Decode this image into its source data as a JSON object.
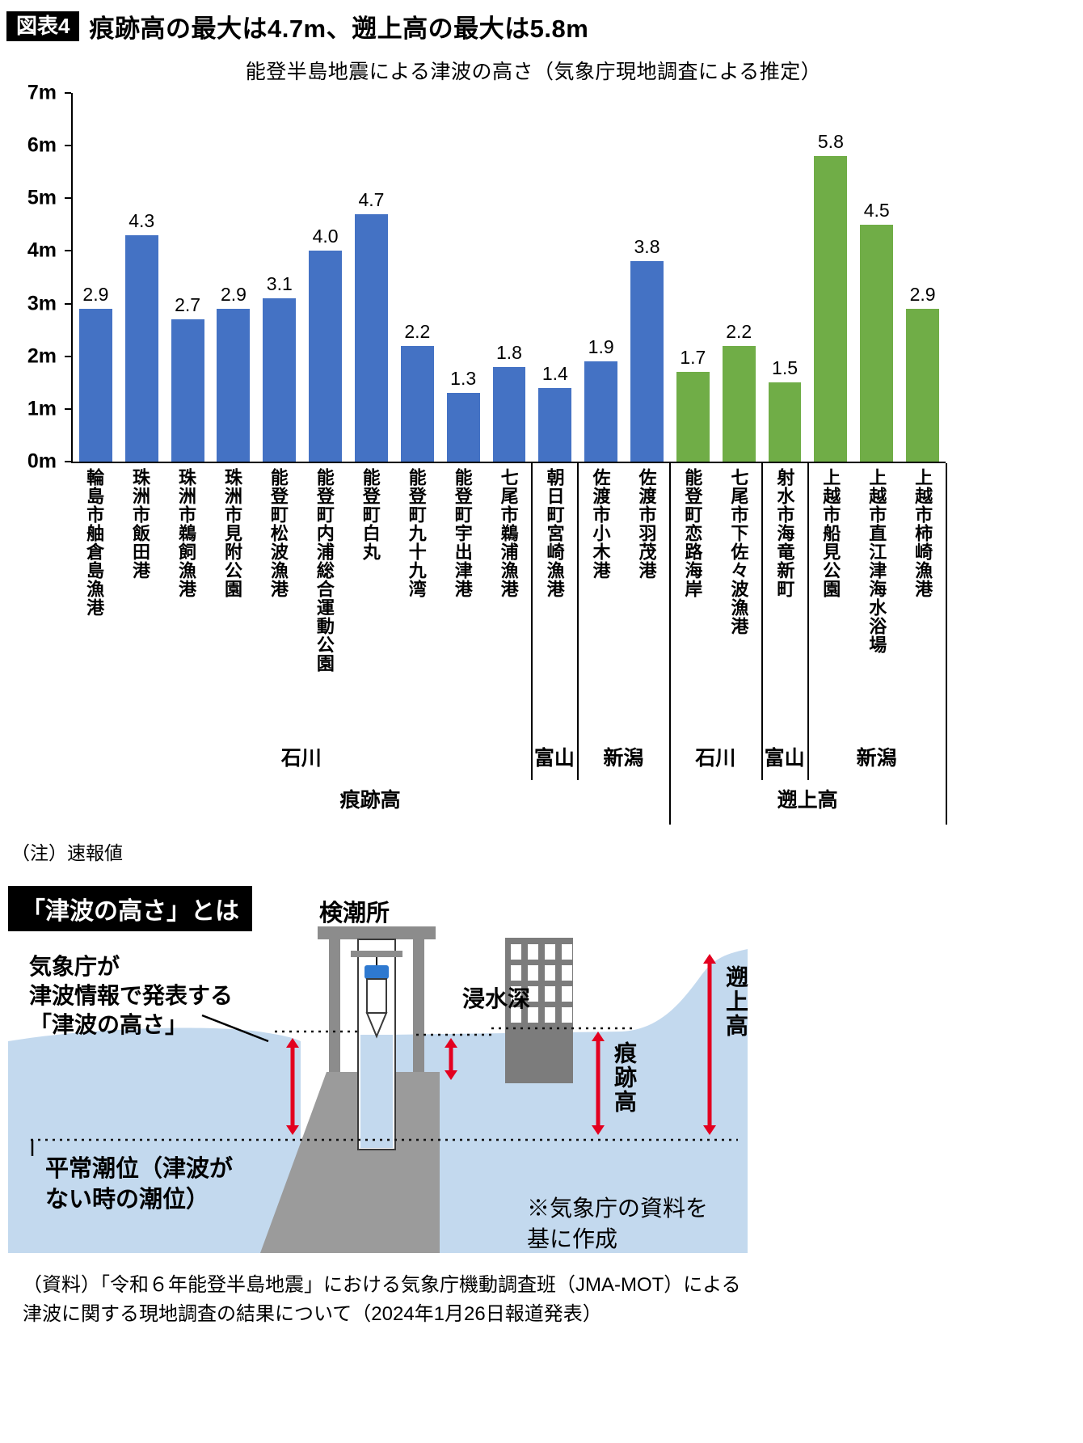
{
  "header": {
    "badge": "図表4",
    "title": "痕跡高の最大は4.7m、遡上高の最大は5.8m"
  },
  "chart_data": {
    "type": "bar",
    "title": "能登半島地震による津波の高さ（気象庁現地調査による推定）",
    "xlabel": "",
    "ylabel": "",
    "ylim": [
      0,
      7
    ],
    "y_ticks": [
      0,
      1,
      2,
      3,
      4,
      5,
      6,
      7
    ],
    "y_tick_suffix": "m",
    "grid": false,
    "groups": [
      {
        "name": "痕跡高",
        "color": "#4472c4"
      },
      {
        "name": "遡上高",
        "color": "#70ad47"
      }
    ],
    "bars": [
      {
        "label": "輪島市舳倉島漁港",
        "value": 2.9,
        "display": "2.9",
        "group": "痕跡高",
        "region": "石川"
      },
      {
        "label": "珠洲市飯田港",
        "value": 4.3,
        "display": "4.3",
        "group": "痕跡高",
        "region": "石川"
      },
      {
        "label": "珠洲市鵜飼漁港",
        "value": 2.7,
        "display": "2.7",
        "group": "痕跡高",
        "region": "石川"
      },
      {
        "label": "珠洲市見附公園",
        "value": 2.9,
        "display": "2.9",
        "group": "痕跡高",
        "region": "石川"
      },
      {
        "label": "能登町松波漁港",
        "value": 3.1,
        "display": "3.1",
        "group": "痕跡高",
        "region": "石川"
      },
      {
        "label": "能登町内浦総合運動公園",
        "value": 4.0,
        "display": "4.0",
        "group": "痕跡高",
        "region": "石川"
      },
      {
        "label": "能登町白丸",
        "value": 4.7,
        "display": "4.7",
        "group": "痕跡高",
        "region": "石川"
      },
      {
        "label": "能登町九十九湾",
        "value": 2.2,
        "display": "2.2",
        "group": "痕跡高",
        "region": "石川"
      },
      {
        "label": "能登町宇出津港",
        "value": 1.3,
        "display": "1.3",
        "group": "痕跡高",
        "region": "石川"
      },
      {
        "label": "七尾市鵜浦漁港",
        "value": 1.8,
        "display": "1.8",
        "group": "痕跡高",
        "region": "石川"
      },
      {
        "label": "朝日町宮崎漁港",
        "value": 1.4,
        "display": "1.4",
        "group": "痕跡高",
        "region": "富山"
      },
      {
        "label": "佐渡市小木港",
        "value": 1.9,
        "display": "1.9",
        "group": "痕跡高",
        "region": "新潟"
      },
      {
        "label": "佐渡市羽茂港",
        "value": 3.8,
        "display": "3.8",
        "group": "痕跡高",
        "region": "新潟"
      },
      {
        "label": "能登町恋路海岸",
        "value": 1.7,
        "display": "1.7",
        "group": "遡上高",
        "region": "石川"
      },
      {
        "label": "七尾市下佐々波漁港",
        "value": 2.2,
        "display": "2.2",
        "group": "遡上高",
        "region": "石川"
      },
      {
        "label": "射水市海竜新町",
        "value": 1.5,
        "display": "1.5",
        "group": "遡上高",
        "region": "富山"
      },
      {
        "label": "上越市船見公園",
        "value": 5.8,
        "display": "5.8",
        "group": "遡上高",
        "region": "新潟"
      },
      {
        "label": "上越市直江津海水浴場",
        "value": 4.5,
        "display": "4.5",
        "group": "遡上高",
        "region": "新潟"
      },
      {
        "label": "上越市柿崎漁港",
        "value": 2.9,
        "display": "2.9",
        "group": "遡上高",
        "region": "新潟"
      }
    ],
    "region_spans": [
      {
        "label": "石川",
        "start": 0,
        "end": 10
      },
      {
        "label": "富山",
        "start": 10,
        "end": 11
      },
      {
        "label": "新潟",
        "start": 11,
        "end": 13
      },
      {
        "label": "石川",
        "start": 13,
        "end": 15
      },
      {
        "label": "富山",
        "start": 15,
        "end": 16
      },
      {
        "label": "新潟",
        "start": 16,
        "end": 19
      }
    ],
    "group_spans": [
      {
        "label": "痕跡高",
        "start": 0,
        "end": 13
      },
      {
        "label": "遡上高",
        "start": 13,
        "end": 19
      }
    ],
    "dividers": [
      {
        "index": 10,
        "extent": "region"
      },
      {
        "index": 11,
        "extent": "region"
      },
      {
        "index": 13,
        "extent": "group"
      },
      {
        "index": 15,
        "extent": "region"
      },
      {
        "index": 16,
        "extent": "region"
      },
      {
        "index": 19,
        "extent": "group"
      }
    ]
  },
  "note": "（注）速報値",
  "illustration": {
    "badge": "「津波の高さ」とは",
    "station_label": "検潮所",
    "jma_label": "気象庁が\n津波情報で発表する\n「津波の高さ」",
    "inundation_label": "浸水深",
    "trace_label": "痕跡高",
    "runup_label": "遡上高",
    "normal_tide_label": "平常潮位（津波が\nない時の潮位）",
    "credit": "※気象庁の資料を\n基に作成",
    "water_color": "#c3d9ee",
    "arrow_color": "#e3001f"
  },
  "source": "（資料）「令和６年能登半島地震」における気象庁機動調査班（JMA-MOT）による\n津波に関する現地調査の結果について（2024年1月26日報道発表）"
}
